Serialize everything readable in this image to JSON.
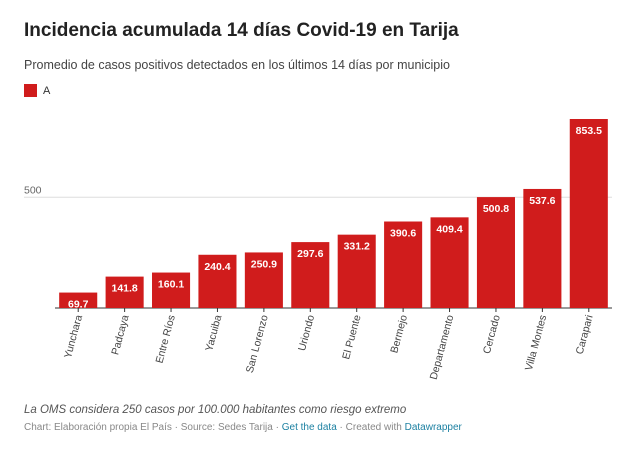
{
  "header": {
    "title": "Incidencia acumulada 14 días Covid-19 en Tarija",
    "subtitle": "Promedio de casos positivos detectados en los últimos 14 días por municipio"
  },
  "legend": {
    "label": "A",
    "color": "#d01c1c"
  },
  "chart_data": {
    "type": "bar",
    "categories": [
      "Yunchara",
      "Padcaya",
      "Entre Ríos",
      "Yacuiba",
      "San Lorenzo",
      "Uriondo",
      "El Puente",
      "Bermejo",
      "Departamento",
      "Cercado",
      "Villa Montes",
      "Carapari"
    ],
    "series": [
      {
        "name": "A",
        "values": [
          69.7,
          141.8,
          160.1,
          240.4,
          250.9,
          297.6,
          331.2,
          390.6,
          409.4,
          500.8,
          537.6,
          853.5
        ]
      }
    ],
    "value_labels": [
      "69.7",
      "141.8",
      "160.1",
      "240.4",
      "250.9",
      "297.6",
      "331.2",
      "390.6",
      "409.4",
      "500.8",
      "537.6",
      "853.5"
    ],
    "yticks": [
      500
    ],
    "ytick_labels": [
      "500"
    ],
    "ylim": [
      0,
      853.5
    ],
    "grid": true,
    "bar_color": "#d01c1c"
  },
  "footer": {
    "note": "La OMS considera 250 casos por 100.000 habitantes como riesgo extremo",
    "credit_prefix": "Chart: Elaboración propia El País · Source: Sedes Tarija · ",
    "get_data": "Get the data",
    "created_with": " · Created with ",
    "datawrapper": "Datawrapper"
  }
}
